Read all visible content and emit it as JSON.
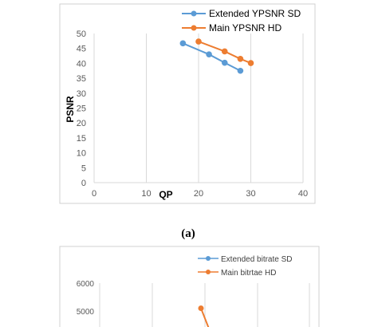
{
  "chart_data": [
    {
      "type": "line",
      "ylabel": "PSNR",
      "xlabel": "QP",
      "xlim": [
        0,
        40
      ],
      "ylim": [
        0,
        50
      ],
      "x_ticks": [
        "0",
        "10",
        "20",
        "30",
        "40"
      ],
      "y_ticks": [
        "0",
        "5",
        "10",
        "15",
        "20",
        "25",
        "30",
        "35",
        "40",
        "45",
        "50"
      ],
      "grid": "vertical",
      "legend_position": "top-right",
      "series": [
        {
          "name": "Extended YPSNR SD",
          "color": "#5b9bd5",
          "x": [
            17,
            22,
            25,
            28
          ],
          "y": [
            46.7,
            43.0,
            40.2,
            37.5
          ]
        },
        {
          "name": "Main YPSNR HD",
          "color": "#ed7d31",
          "x": [
            20,
            25,
            28,
            30
          ],
          "y": [
            47.3,
            44.0,
            41.5,
            40.1
          ]
        }
      ],
      "caption": "(a)"
    },
    {
      "type": "line",
      "y_ticks": [
        "6000",
        "5000"
      ],
      "ylim_visible": [
        4600,
        6000
      ],
      "grid": "vertical",
      "legend_position": "top-right",
      "series": [
        {
          "name": "Extended bitrate SD",
          "color": "#5b9bd5"
        },
        {
          "name": "Main bitrtae HD",
          "color": "#ed7d31",
          "visible_points_y": [
            5100
          ]
        }
      ]
    }
  ]
}
